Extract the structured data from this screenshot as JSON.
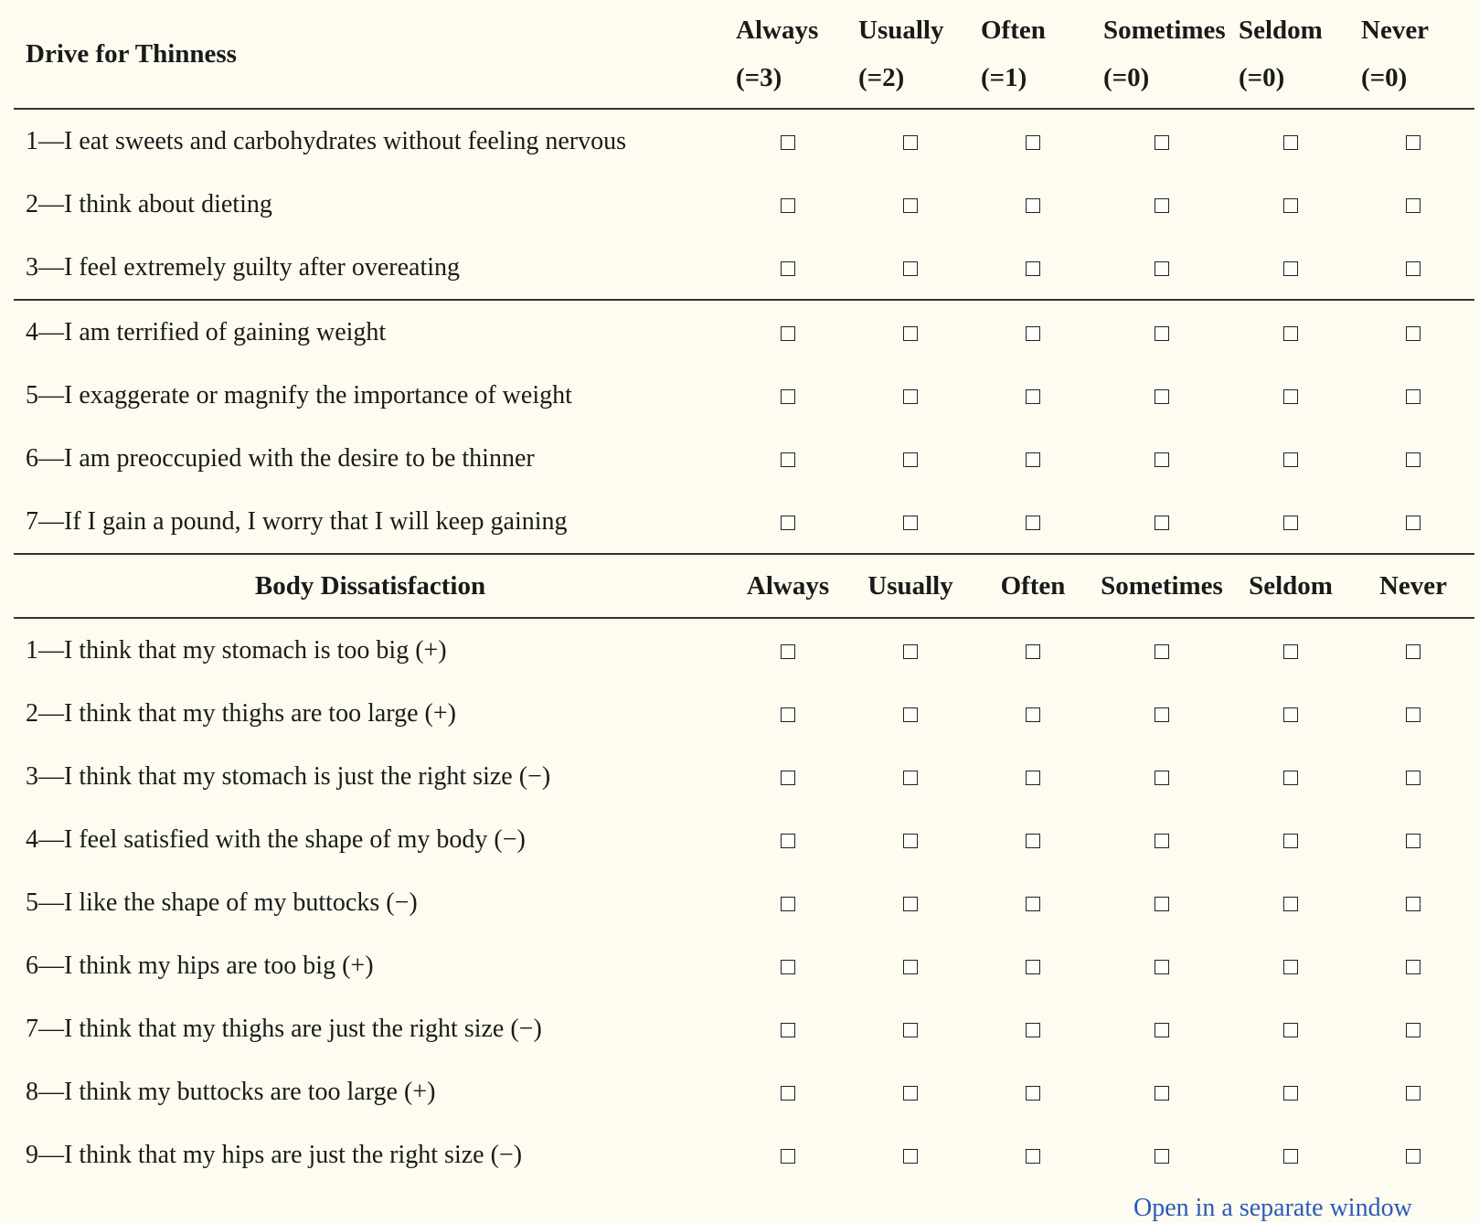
{
  "section1": {
    "title": "Drive for Thinness",
    "columns": [
      {
        "name": "Always",
        "value": "(=3)"
      },
      {
        "name": "Usually",
        "value": "(=2)"
      },
      {
        "name": "Often",
        "value": "(=1)"
      },
      {
        "name": "Sometimes",
        "value": "(=0)"
      },
      {
        "name": "Seldom",
        "value": "(=0)"
      },
      {
        "name": "Never",
        "value": "(=0)"
      }
    ],
    "items": [
      "1—I eat sweets and carbohydrates without feeling nervous",
      "2—I think about dieting",
      "3—I feel extremely guilty after overeating",
      "4—I am terrified of gaining weight",
      "5—I exaggerate or magnify the importance of weight",
      "6—I am preoccupied with the desire to be thinner",
      "7—If I gain a pound, I worry that I will keep gaining"
    ]
  },
  "section2": {
    "title": "Body Dissatisfaction",
    "columns": [
      "Always",
      "Usually",
      "Often",
      "Sometimes",
      "Seldom",
      "Never"
    ],
    "items": [
      "1—I think that my stomach is too big (+)",
      "2—I think that my thighs are too large (+)",
      "3—I think that my stomach is just the right size (−)",
      "4—I feel satisfied with the shape of my body (−)",
      "5—I like the shape of my buttocks (−)",
      "6—I think my hips are too big (+)",
      "7—I think that my thighs are just the right size (−)",
      "8—I think my buttocks are too large (+)",
      "9—I think that my hips are just the right size (−)"
    ]
  },
  "footer": {
    "link_text": "Open in a separate window"
  }
}
